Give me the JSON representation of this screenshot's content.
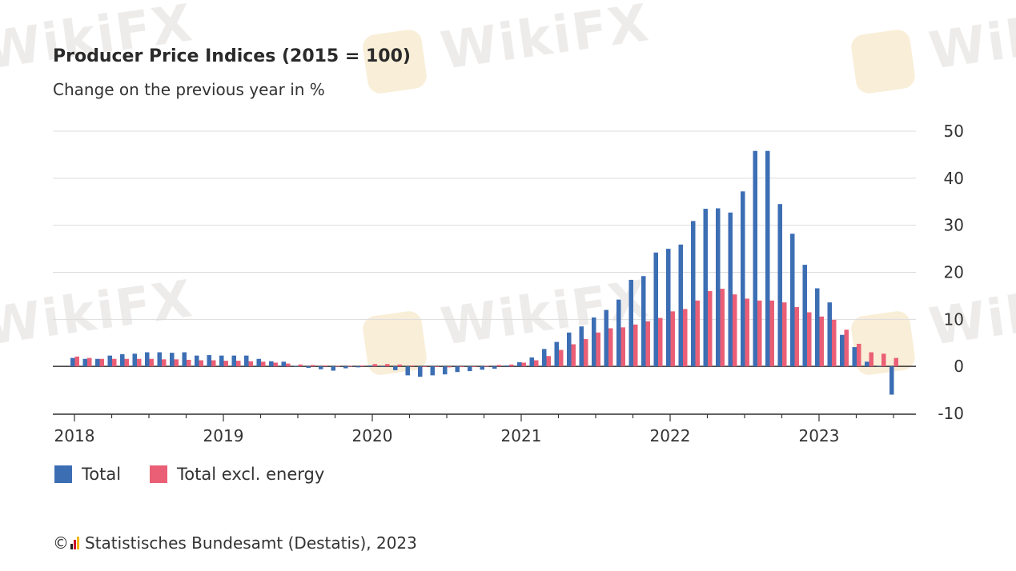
{
  "title": "Producer Price Indices (2015 = 100)",
  "subtitle": "Change on the previous year in %",
  "watermark": "WikiFX",
  "colors": {
    "total": "#3c6eb4",
    "excl_energy": "#ea5f76",
    "grid": "#dcdcdc",
    "axis": "#333333"
  },
  "legend": {
    "total": "Total",
    "excl_energy": "Total excl. energy"
  },
  "source": {
    "copyright": "©",
    "text": "Statistisches Bundesamt (Destatis), 2023"
  },
  "chart_data": {
    "type": "bar",
    "title": "Producer Price Indices (2015 = 100)",
    "subtitle": "Change on the previous year in %",
    "x_tick_labels": [
      "2018",
      "2019",
      "2020",
      "2021",
      "2022",
      "2023"
    ],
    "y_tick_labels": [
      "-10",
      "0",
      "10",
      "20",
      "30",
      "40",
      "50"
    ],
    "ylim": [
      -10,
      50
    ],
    "y_axis_side": "right",
    "grid": true,
    "legend_position": "bottom-left",
    "start_month": "2018-01",
    "categories": [
      "2018-01",
      "2018-02",
      "2018-03",
      "2018-04",
      "2018-05",
      "2018-06",
      "2018-07",
      "2018-08",
      "2018-09",
      "2018-10",
      "2018-11",
      "2018-12",
      "2019-01",
      "2019-02",
      "2019-03",
      "2019-04",
      "2019-05",
      "2019-06",
      "2019-07",
      "2019-08",
      "2019-09",
      "2019-10",
      "2019-11",
      "2019-12",
      "2020-01",
      "2020-02",
      "2020-03",
      "2020-04",
      "2020-05",
      "2020-06",
      "2020-07",
      "2020-08",
      "2020-09",
      "2020-10",
      "2020-11",
      "2020-12",
      "2021-01",
      "2021-02",
      "2021-03",
      "2021-04",
      "2021-05",
      "2021-06",
      "2021-07",
      "2021-08",
      "2021-09",
      "2021-10",
      "2021-11",
      "2021-12",
      "2022-01",
      "2022-02",
      "2022-03",
      "2022-04",
      "2022-05",
      "2022-06",
      "2022-07",
      "2022-08",
      "2022-09",
      "2022-10",
      "2022-11",
      "2022-12",
      "2023-01",
      "2023-02",
      "2023-03",
      "2023-04",
      "2023-05",
      "2023-06",
      "2023-07"
    ],
    "series": [
      {
        "name": "Total",
        "values": [
          1.8,
          1.6,
          1.6,
          2.3,
          2.6,
          2.7,
          3.0,
          3.0,
          2.9,
          3.0,
          2.3,
          2.4,
          2.3,
          2.3,
          2.3,
          1.6,
          1.1,
          1.0,
          0.1,
          -0.3,
          -0.6,
          -0.9,
          -0.4,
          -0.2,
          0.2,
          -0.1,
          -0.8,
          -1.9,
          -2.2,
          -1.9,
          -1.7,
          -1.2,
          -1.0,
          -0.7,
          -0.5,
          0.2,
          0.9,
          1.9,
          3.7,
          5.2,
          7.2,
          8.5,
          10.4,
          12.0,
          14.2,
          18.4,
          19.2,
          24.2,
          25.0,
          25.9,
          30.9,
          33.5,
          33.6,
          32.7,
          37.2,
          45.8,
          45.8,
          34.5,
          28.2,
          21.6,
          16.6,
          13.6,
          6.7,
          4.1,
          1.0,
          0.1,
          -6.0
        ]
      },
      {
        "name": "Total excl. energy",
        "values": [
          2.1,
          1.8,
          1.6,
          1.6,
          1.6,
          1.6,
          1.6,
          1.5,
          1.5,
          1.4,
          1.3,
          1.3,
          1.2,
          1.2,
          1.1,
          1.0,
          0.8,
          0.6,
          0.4,
          0.3,
          0.2,
          0.1,
          0.1,
          0.2,
          0.5,
          0.5,
          0.4,
          0.2,
          0.0,
          -0.1,
          -0.2,
          -0.1,
          0.0,
          0.1,
          0.3,
          0.4,
          0.8,
          1.3,
          2.2,
          3.5,
          4.7,
          5.8,
          7.2,
          8.1,
          8.3,
          8.9,
          9.6,
          10.3,
          11.7,
          12.2,
          14.0,
          16.0,
          16.5,
          15.3,
          14.4,
          14.0,
          14.0,
          13.6,
          12.6,
          11.5,
          10.6,
          9.9,
          7.8,
          4.8,
          3.0,
          2.7,
          1.8
        ]
      }
    ]
  }
}
